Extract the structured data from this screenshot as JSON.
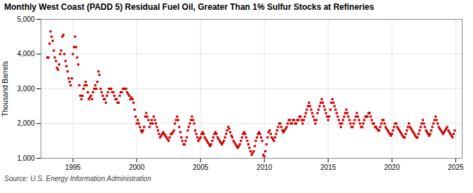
{
  "chart_data": {
    "type": "scatter",
    "title": "Monthly West Coast (PADD 5) Residual Fuel Oil, Greater Than 1% Sulfur Stocks at Refineries",
    "ylabel": "Thousand Barrels",
    "source": "Source: U.S. Energy Information Administration",
    "color": "#CC0000",
    "marker": "square",
    "grid": true,
    "xlim": [
      1992.5,
      2025.5
    ],
    "xticks": [
      1995,
      2000,
      2005,
      2010,
      2015,
      2020,
      2025
    ],
    "ylim": [
      1000,
      5000
    ],
    "yticks": [
      {
        "value": 1000,
        "label": "1,000"
      },
      {
        "value": 2000,
        "label": "2,000"
      },
      {
        "value": 3000,
        "label": "3,000"
      },
      {
        "value": 4000,
        "label": "4,000"
      },
      {
        "value": 5000,
        "label": "5,000"
      }
    ],
    "x": [
      1993.0,
      1993.08,
      1993.17,
      1993.25,
      1993.33,
      1993.42,
      1993.5,
      1993.58,
      1993.67,
      1993.75,
      1993.83,
      1993.92,
      1994.0,
      1994.08,
      1994.17,
      1994.25,
      1994.33,
      1994.42,
      1994.5,
      1994.58,
      1994.67,
      1994.75,
      1994.83,
      1994.92,
      1995.0,
      1995.08,
      1995.17,
      1995.25,
      1995.33,
      1995.42,
      1995.5,
      1995.58,
      1995.67,
      1995.75,
      1995.83,
      1995.92,
      1996.0,
      1996.08,
      1996.17,
      1996.25,
      1996.33,
      1996.42,
      1996.5,
      1996.58,
      1996.67,
      1996.75,
      1996.83,
      1996.92,
      1997.0,
      1997.08,
      1997.17,
      1997.25,
      1997.33,
      1997.42,
      1997.5,
      1997.58,
      1997.67,
      1997.75,
      1997.83,
      1997.92,
      1998.0,
      1998.08,
      1998.17,
      1998.25,
      1998.33,
      1998.42,
      1998.5,
      1998.58,
      1998.67,
      1998.75,
      1998.83,
      1998.92,
      1999.0,
      1999.08,
      1999.17,
      1999.25,
      1999.33,
      1999.42,
      1999.5,
      1999.58,
      1999.67,
      1999.75,
      1999.83,
      1999.92,
      2000.0,
      2000.08,
      2000.17,
      2000.25,
      2000.33,
      2000.42,
      2000.5,
      2000.58,
      2000.67,
      2000.75,
      2000.83,
      2000.92,
      2001.0,
      2001.08,
      2001.17,
      2001.25,
      2001.33,
      2001.42,
      2001.5,
      2001.58,
      2001.67,
      2001.75,
      2001.83,
      2001.92,
      2002.0,
      2002.08,
      2002.17,
      2002.25,
      2002.33,
      2002.42,
      2002.5,
      2002.58,
      2002.67,
      2002.75,
      2002.83,
      2002.92,
      2003.0,
      2003.08,
      2003.17,
      2003.25,
      2003.33,
      2003.42,
      2003.5,
      2003.58,
      2003.67,
      2003.75,
      2003.83,
      2003.92,
      2004.0,
      2004.08,
      2004.17,
      2004.25,
      2004.33,
      2004.42,
      2004.5,
      2004.58,
      2004.67,
      2004.75,
      2004.83,
      2004.92,
      2005.0,
      2005.08,
      2005.17,
      2005.25,
      2005.33,
      2005.42,
      2005.5,
      2005.58,
      2005.67,
      2005.75,
      2005.83,
      2005.92,
      2006.0,
      2006.08,
      2006.17,
      2006.25,
      2006.33,
      2006.42,
      2006.5,
      2006.58,
      2006.67,
      2006.75,
      2006.83,
      2006.92,
      2007.0,
      2007.08,
      2007.17,
      2007.25,
      2007.33,
      2007.42,
      2007.5,
      2007.58,
      2007.67,
      2007.75,
      2007.83,
      2007.92,
      2008.0,
      2008.08,
      2008.17,
      2008.25,
      2008.33,
      2008.42,
      2008.5,
      2008.58,
      2008.67,
      2008.75,
      2008.83,
      2008.92,
      2009.0,
      2009.08,
      2009.17,
      2009.25,
      2009.33,
      2009.42,
      2009.5,
      2009.58,
      2009.67,
      2009.75,
      2009.83,
      2009.92,
      2010.0,
      2010.08,
      2010.17,
      2010.25,
      2010.33,
      2010.42,
      2010.5,
      2010.58,
      2010.67,
      2010.75,
      2010.83,
      2010.92,
      2011.0,
      2011.08,
      2011.17,
      2011.25,
      2011.33,
      2011.42,
      2011.5,
      2011.58,
      2011.67,
      2011.75,
      2011.83,
      2011.92,
      2012.0,
      2012.08,
      2012.17,
      2012.25,
      2012.33,
      2012.42,
      2012.5,
      2012.58,
      2012.67,
      2012.75,
      2012.83,
      2012.92,
      2013.0,
      2013.08,
      2013.17,
      2013.25,
      2013.33,
      2013.42,
      2013.5,
      2013.58,
      2013.67,
      2013.75,
      2013.83,
      2013.92,
      2014.0,
      2014.08,
      2014.17,
      2014.25,
      2014.33,
      2014.42,
      2014.5,
      2014.58,
      2014.67,
      2014.75,
      2014.83,
      2014.92,
      2015.0,
      2015.08,
      2015.17,
      2015.25,
      2015.33,
      2015.42,
      2015.5,
      2015.58,
      2015.67,
      2015.75,
      2015.83,
      2015.92,
      2016.0,
      2016.08,
      2016.17,
      2016.25,
      2016.33,
      2016.42,
      2016.5,
      2016.58,
      2016.67,
      2016.75,
      2016.83,
      2016.92,
      2017.0,
      2017.08,
      2017.17,
      2017.25,
      2017.33,
      2017.42,
      2017.5,
      2017.58,
      2017.67,
      2017.75,
      2017.83,
      2017.92,
      2018.0,
      2018.08,
      2018.17,
      2018.25,
      2018.33,
      2018.42,
      2018.5,
      2018.58,
      2018.67,
      2018.75,
      2018.83,
      2018.92,
      2019.0,
      2019.08,
      2019.17,
      2019.25,
      2019.33,
      2019.42,
      2019.5,
      2019.58,
      2019.67,
      2019.75,
      2019.83,
      2019.92,
      2020.0,
      2020.08,
      2020.17,
      2020.25,
      2020.33,
      2020.42,
      2020.5,
      2020.58,
      2020.67,
      2020.75,
      2020.83,
      2020.92,
      2021.0,
      2021.08,
      2021.17,
      2021.25,
      2021.33,
      2021.42,
      2021.5,
      2021.58,
      2021.67,
      2021.75,
      2021.83,
      2021.92,
      2022.0,
      2022.08,
      2022.17,
      2022.25,
      2022.33,
      2022.42,
      2022.5,
      2022.58,
      2022.67,
      2022.75,
      2022.83,
      2022.92,
      2023.0,
      2023.08,
      2023.17,
      2023.25,
      2023.33,
      2023.42,
      2023.5,
      2023.58,
      2023.67,
      2023.75,
      2023.83,
      2023.92,
      2024.0,
      2024.08,
      2024.17,
      2024.25,
      2024.33,
      2024.42,
      2024.5,
      2024.58,
      2024.67,
      2024.75,
      2024.83,
      2024.92
    ],
    "values": [
      3900,
      3900,
      4300,
      4650,
      4500,
      4380,
      4100,
      3900,
      3800,
      3600,
      3550,
      3700,
      4000,
      4100,
      4500,
      4550,
      4000,
      3800,
      3650,
      3500,
      3300,
      3200,
      3100,
      3300,
      4000,
      4200,
      4500,
      4200,
      3900,
      3700,
      3100,
      2800,
      2700,
      2800,
      3000,
      3100,
      3200,
      3100,
      2900,
      2700,
      2750,
      2800,
      2700,
      2900,
      3000,
      3100,
      3000,
      3200,
      3500,
      3400,
      3000,
      2900,
      2800,
      2700,
      2700,
      2600,
      2800,
      2900,
      3000,
      3000,
      3000,
      2900,
      2900,
      2800,
      2700,
      2700,
      2600,
      2600,
      2800,
      2900,
      2900,
      3000,
      3000,
      3000,
      3000,
      2900,
      2850,
      2800,
      2700,
      2750,
      2700,
      2600,
      2400,
      2200,
      2000,
      2100,
      2000,
      1900,
      1800,
      1750,
      1800,
      1900,
      2200,
      2300,
      2200,
      2100,
      1900,
      2000,
      2100,
      2000,
      2200,
      2100,
      2000,
      1900,
      1800,
      1700,
      1600,
      1650,
      1700,
      1750,
      1700,
      1650,
      1600,
      1550,
      1500,
      1600,
      1700,
      1700,
      1750,
      1800,
      2000,
      2100,
      2200,
      2100,
      1900,
      1750,
      1600,
      1500,
      1400,
      1400,
      1500,
      1600,
      1800,
      1900,
      2000,
      2100,
      2200,
      2100,
      2000,
      1800,
      1700,
      1600,
      1500,
      1550,
      1600,
      1700,
      1750,
      1700,
      1600,
      1550,
      1500,
      1450,
      1400,
      1350,
      1400,
      1500,
      1600,
      1700,
      1750,
      1700,
      1600,
      1550,
      1500,
      1450,
      1400,
      1450,
      1500,
      1600,
      1700,
      1800,
      1900,
      1850,
      1750,
      1650,
      1600,
      1500,
      1450,
      1400,
      1350,
      1300,
      1350,
      1400,
      1500,
      1600,
      1700,
      1750,
      1700,
      1600,
      1500,
      1400,
      1300,
      1200,
      1100,
      1150,
      1200,
      1350,
      1500,
      1600,
      1700,
      1750,
      1700,
      1600,
      1500,
      1100,
      1050,
      1200,
      1400,
      1600,
      1750,
      1800,
      1700,
      1600,
      1550,
      1500,
      1600,
      1700,
      1800,
      1900,
      2000,
      2000,
      1900,
      1800,
      1750,
      1800,
      1850,
      1900,
      2000,
      2100,
      2100,
      2000,
      2000,
      2100,
      2100,
      2000,
      2000,
      2100,
      2100,
      2200,
      2200,
      2100,
      2000,
      2100,
      2200,
      2300,
      2400,
      2500,
      2600,
      2500,
      2400,
      2300,
      2200,
      2100,
      2000,
      2100,
      2300,
      2400,
      2500,
      2600,
      2700,
      2600,
      2500,
      2400,
      2300,
      2200,
      2100,
      2200,
      2400,
      2600,
      2700,
      2600,
      2500,
      2400,
      2300,
      2200,
      2100,
      2000,
      1900,
      2000,
      2100,
      2200,
      2300,
      2400,
      2300,
      2200,
      2100,
      2000,
      1900,
      1900,
      2000,
      2100,
      2200,
      2300,
      2200,
      2100,
      2000,
      1900,
      1900,
      2000,
      2100,
      2200,
      2200,
      2200,
      2300,
      2300,
      2200,
      2100,
      2000,
      2000,
      1900,
      1900,
      1850,
      1800,
      1800,
      1900,
      2000,
      2100,
      2100,
      2000,
      1900,
      1850,
      1800,
      1750,
      1700,
      1650,
      1700,
      1800,
      1900,
      2000,
      2000,
      1900,
      1850,
      1800,
      1750,
      1700,
      1650,
      1600,
      1600,
      1700,
      1800,
      1900,
      2000,
      1900,
      1850,
      1800,
      1750,
      1700,
      1650,
      1600,
      1600,
      1700,
      1800,
      1900,
      2000,
      2100,
      2000,
      1900,
      1800,
      1750,
      1700,
      1650,
      1700,
      1800,
      1900,
      2000,
      2100,
      2200,
      2100,
      2000,
      1900,
      1850,
      1800,
      1750,
      1700,
      1750,
      1800,
      1850,
      1900,
      1800,
      1750,
      1700,
      1650,
      1600,
      1700,
      1800
    ]
  }
}
